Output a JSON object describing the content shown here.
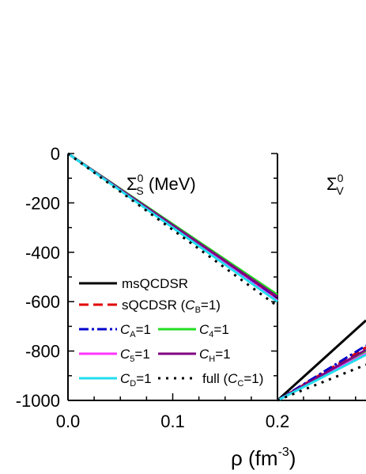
{
  "chart_data": [
    {
      "type": "line",
      "title": "Σ⁰ₛ (MeV)",
      "title_parts": {
        "sym": "Σ",
        "sup": "0",
        "sub": "S",
        "unit": " (MeV)"
      },
      "xlim": [
        0.0,
        0.2
      ],
      "ylim": [
        -1000,
        0
      ],
      "xticks": [
        "0.0",
        "0.1",
        "0.2"
      ],
      "yticks": [
        "0",
        "-200",
        "-400",
        "-600",
        "-800",
        "-1000"
      ],
      "grid": false,
      "legend_placement": "bottom-left",
      "series": [
        {
          "name": "msQCDSR",
          "color": "#000000",
          "style": "solid",
          "x": [
            0.0,
            0.2
          ],
          "y": [
            0,
            -585
          ]
        },
        {
          "name": "sQCDSR (C_B=1)",
          "color": "#e00000",
          "style": "dashed",
          "x": [
            0.0,
            0.2
          ],
          "y": [
            0,
            -592
          ]
        },
        {
          "name": "C_A=1",
          "color": "#0000cc",
          "style": "dashdot",
          "x": [
            0.0,
            0.2
          ],
          "y": [
            0,
            -588
          ]
        },
        {
          "name": "C_4=1",
          "color": "#22dd22",
          "style": "solid",
          "x": [
            0.0,
            0.2
          ],
          "y": [
            0,
            -572
          ]
        },
        {
          "name": "C_5=1",
          "color": "#ff33ff",
          "style": "solid",
          "x": [
            0.0,
            0.2
          ],
          "y": [
            0,
            -596
          ]
        },
        {
          "name": "C_H=1",
          "color": "#800080",
          "style": "solid",
          "x": [
            0.0,
            0.2
          ],
          "y": [
            0,
            -580
          ]
        },
        {
          "name": "C_D=1",
          "color": "#22ddee",
          "style": "solid",
          "x": [
            0.0,
            0.2
          ],
          "y": [
            0,
            -600
          ]
        },
        {
          "name": "full (C_C=1)",
          "color": "#000000",
          "style": "dotted",
          "x": [
            0.0,
            0.2
          ],
          "y": [
            0,
            -618
          ]
        }
      ]
    },
    {
      "type": "line",
      "title": "Σ⁰ᵥ",
      "title_parts": {
        "sym": "Σ",
        "sup": "0",
        "sub": "V",
        "unit": ""
      },
      "xlim": [
        0.2,
        0.285
      ],
      "xticks": [
        "0.2"
      ],
      "ylim": [
        -1000,
        0
      ],
      "series": [
        {
          "name": "msQCDSR",
          "color": "#000000",
          "style": "solid",
          "x": [
            0.2,
            0.285
          ],
          "y": [
            -1000,
            -676
          ]
        },
        {
          "name": "sQCDSR (C_B=1)",
          "color": "#e00000",
          "style": "dashed",
          "x": [
            0.2,
            0.285
          ],
          "y": [
            -1000,
            -785
          ]
        },
        {
          "name": "C_A=1",
          "color": "#0000cc",
          "style": "dashdot",
          "x": [
            0.2,
            0.285
          ],
          "y": [
            -1000,
            -778
          ]
        },
        {
          "name": "C_4=1",
          "color": "#22dd22",
          "style": "solid",
          "x": [
            0.2,
            0.285
          ],
          "y": [
            -1000,
            -800
          ]
        },
        {
          "name": "C_5=1",
          "color": "#ff33ff",
          "style": "solid",
          "x": [
            0.2,
            0.285
          ],
          "y": [
            -1000,
            -810
          ]
        },
        {
          "name": "C_H=1",
          "color": "#800080",
          "style": "solid",
          "x": [
            0.2,
            0.285
          ],
          "y": [
            -1000,
            -795
          ]
        },
        {
          "name": "C_D=1",
          "color": "#22ddee",
          "style": "solid",
          "x": [
            0.2,
            0.285
          ],
          "y": [
            -1000,
            -815
          ]
        },
        {
          "name": "full (C_C=1)",
          "color": "#000000",
          "style": "dotted",
          "x": [
            0.2,
            0.285
          ],
          "y": [
            -1000,
            -855
          ]
        }
      ]
    }
  ],
  "xlabel": {
    "sym": "ρ",
    "unit": " (fm",
    "exp": "-3",
    "close": ")"
  },
  "legend": [
    {
      "label": "msQCDSR",
      "sub": ""
    },
    {
      "label": "sQCDSR (",
      "c": "B",
      "after": "=1)"
    },
    {
      "label": "",
      "c": "A",
      "after": "=1"
    },
    {
      "label": "",
      "c": "4",
      "after": "=1"
    },
    {
      "label": "",
      "c": "5",
      "after": "=1"
    },
    {
      "label": "",
      "c": "H",
      "after": "=1"
    },
    {
      "label": "",
      "c": "D",
      "after": "=1"
    },
    {
      "label": "full (",
      "c": "C",
      "after": "=1)"
    }
  ]
}
